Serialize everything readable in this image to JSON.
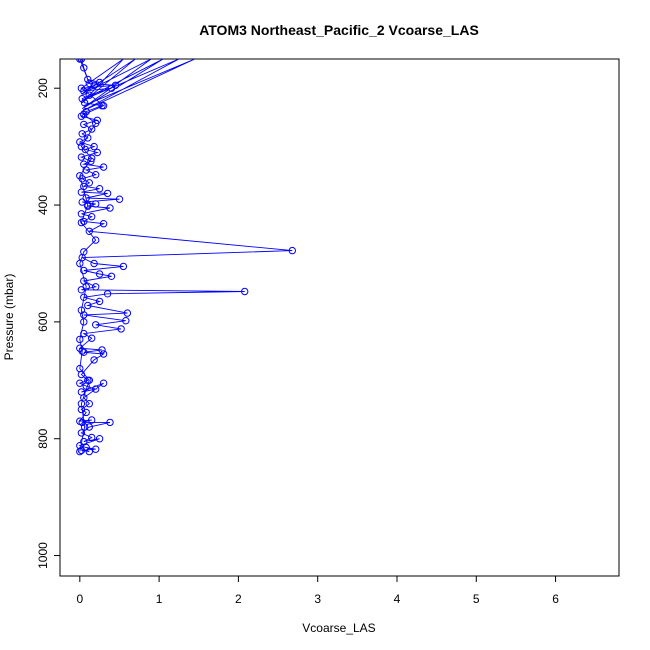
{
  "chart_data": {
    "type": "line",
    "title": "ATOM3 Northeast_Pacific_2 Vcoarse_LAS",
    "xlabel": "Vcoarse_LAS",
    "ylabel": "Pressure (mbar)",
    "xlim": [
      -0.25,
      6.8
    ],
    "ylim": [
      1035,
      150
    ],
    "y_inverted": true,
    "x_ticks": [
      "0",
      "1",
      "2",
      "3",
      "4",
      "5",
      "6"
    ],
    "y_ticks": [
      "200",
      "400",
      "600",
      "800",
      "1000"
    ],
    "grid": false,
    "legend": "none",
    "colors": {
      "series": "#0000ff",
      "axes": "#000000"
    },
    "series": [
      {
        "marker": "open-circle",
        "x": [
          0.02,
          0.05,
          0.1,
          0.25,
          0.18,
          0.05,
          0.4,
          0.12,
          0.03,
          0.06,
          0.28,
          0.08,
          0.02,
          0.22,
          0.05,
          0.15,
          0.03,
          0.1,
          0.0,
          0.18,
          0.07,
          0.22,
          0.02,
          0.14,
          0.05,
          0.3,
          0.08,
          0.2,
          0.03,
          0.12,
          0.05,
          0.25,
          0.02,
          0.35,
          0.08,
          0.5,
          0.03,
          0.2,
          0.1,
          0.38,
          0.02,
          0.15,
          0.05,
          0.3,
          0.12,
          2.68,
          0.03,
          0.18,
          0.55,
          0.05,
          0.25,
          0.4,
          0.05,
          0.2,
          0.02,
          2.08,
          0.35,
          0.05,
          0.25,
          0.1,
          0.6,
          0.05,
          0.58,
          0.2,
          0.52,
          0.05,
          0.15,
          0.0,
          0.28,
          0.05,
          0.3,
          0.18,
          0.02,
          0.1,
          0.0,
          0.08,
          0.2,
          0.02,
          0.3,
          0.05,
          0.12,
          0.02,
          0.08,
          0.0,
          0.15,
          0.03,
          0.38,
          0.12,
          0.02,
          0.15,
          0.05,
          0.25,
          0.0,
          0.08,
          0.2,
          0.02,
          0.12
        ],
        "y": [
          150,
          165,
          185,
          190,
          195,
          205,
          200,
          212,
          218,
          225,
          230,
          240,
          248,
          255,
          262,
          270,
          278,
          285,
          292,
          300,
          305,
          310,
          318,
          325,
          330,
          335,
          340,
          348,
          355,
          362,
          368,
          372,
          378,
          380,
          388,
          390,
          395,
          398,
          402,
          405,
          415,
          420,
          428,
          432,
          445,
          478,
          490,
          500,
          505,
          512,
          518,
          522,
          530,
          540,
          545,
          548,
          552,
          558,
          565,
          572,
          585,
          588,
          598,
          605,
          612,
          620,
          628,
          645,
          648,
          652,
          655,
          665,
          690,
          700,
          705,
          710,
          715,
          720,
          705,
          730,
          740,
          750,
          755,
          770,
          768,
          772,
          772,
          780,
          790,
          798,
          805,
          800,
          812,
          815,
          818,
          820,
          822
        ]
      },
      {
        "marker": "open-circle",
        "x": [
          0.0,
          0.12,
          0.45,
          0.02,
          0.3,
          0.05,
          0.2,
          0.02,
          0.15,
          0.0,
          0.1,
          0.02,
          0.2,
          0.05,
          0.0,
          0.08,
          0.02,
          0.05,
          0.0,
          0.03,
          0.0,
          0.12,
          0.02,
          0.06,
          0.0
        ],
        "y": [
          150,
          192,
          195,
          200,
          230,
          245,
          260,
          300,
          320,
          350,
          400,
          430,
          460,
          480,
          500,
          540,
          580,
          600,
          630,
          650,
          680,
          700,
          740,
          780,
          822
        ]
      }
    ],
    "fan_series": {
      "marker": "none",
      "x": [
        0.05,
        1.45,
        0.02,
        1.25,
        0.04,
        1.05,
        0.03,
        0.9,
        0.02,
        0.7,
        0.03,
        0.55,
        0.02
      ],
      "y": [
        230,
        150,
        240,
        150,
        220,
        150,
        235,
        150,
        210,
        150,
        225,
        150,
        200
      ]
    }
  }
}
